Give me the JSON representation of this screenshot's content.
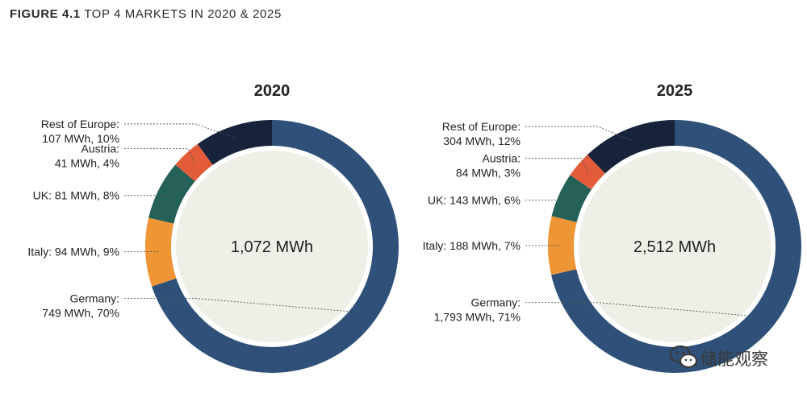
{
  "figure": {
    "label": "FIGURE 4.1",
    "title": "TOP 4 MARKETS IN 2020 & 2025"
  },
  "watermark": {
    "text": "储能观察",
    "icon": "wechat-icon"
  },
  "colors": {
    "Germany": "#2e5079",
    "Italy": "#ee9536",
    "UK": "#256157",
    "Austria": "#e25c3a",
    "Rest of Europe": "#16233b",
    "center": "#efeee7"
  },
  "chart_data": [
    {
      "type": "pie",
      "title": "2020",
      "total_label": "1,072 MWh",
      "slices": [
        {
          "name": "Germany",
          "value": 749,
          "percent": 70,
          "label_lines": [
            "Germany:",
            "749 MWh, 70%"
          ]
        },
        {
          "name": "Italy",
          "value": 94,
          "percent": 9,
          "label_lines": [
            "Italy: 94 MWh, 9%"
          ]
        },
        {
          "name": "UK",
          "value": 81,
          "percent": 8,
          "label_lines": [
            "UK: 81 MWh, 8%"
          ]
        },
        {
          "name": "Austria",
          "value": 41,
          "percent": 4,
          "label_lines": [
            "Austria:",
            "41 MWh, 4%"
          ]
        },
        {
          "name": "Rest of Europe",
          "value": 107,
          "percent": 10,
          "label_lines": [
            "Rest of Europe:",
            "107 MWh, 10%"
          ]
        }
      ]
    },
    {
      "type": "pie",
      "title": "2025",
      "total_label": "2,512 MWh",
      "slices": [
        {
          "name": "Germany",
          "value": 1793,
          "percent": 71,
          "label_lines": [
            "Germany:",
            "1,793 MWh, 71%"
          ]
        },
        {
          "name": "Italy",
          "value": 188,
          "percent": 7,
          "label_lines": [
            "Italy: 188 MWh, 7%"
          ]
        },
        {
          "name": "UK",
          "value": 143,
          "percent": 6,
          "label_lines": [
            "UK: 143 MWh, 6%"
          ]
        },
        {
          "name": "Austria",
          "value": 84,
          "percent": 3,
          "label_lines": [
            "Austria:",
            "84 MWh, 3%"
          ]
        },
        {
          "name": "Rest of Europe",
          "value": 304,
          "percent": 12,
          "label_lines": [
            "Rest of Europe:",
            "304 MWh, 12%"
          ]
        }
      ]
    }
  ]
}
